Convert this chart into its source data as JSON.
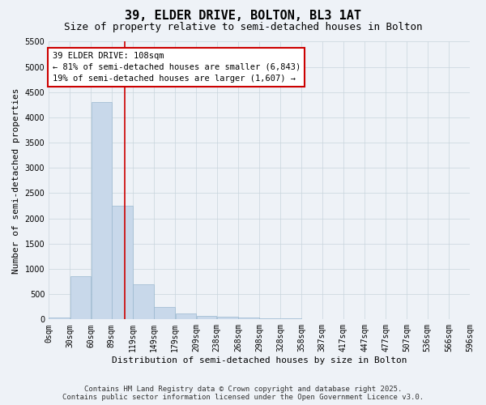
{
  "title": "39, ELDER DRIVE, BOLTON, BL3 1AT",
  "subtitle": "Size of property relative to semi-detached houses in Bolton",
  "xlabel": "Distribution of semi-detached houses by size in Bolton",
  "ylabel": "Number of semi-detached properties",
  "bin_labels": [
    "0sqm",
    "30sqm",
    "60sqm",
    "89sqm",
    "119sqm",
    "149sqm",
    "179sqm",
    "209sqm",
    "238sqm",
    "268sqm",
    "298sqm",
    "328sqm",
    "358sqm",
    "387sqm",
    "417sqm",
    "447sqm",
    "477sqm",
    "507sqm",
    "536sqm",
    "566sqm",
    "596sqm"
  ],
  "bin_edges": [
    0,
    30,
    60,
    89,
    119,
    149,
    179,
    209,
    238,
    268,
    298,
    328,
    358,
    387,
    417,
    447,
    477,
    507,
    536,
    566,
    596
  ],
  "bar_heights": [
    30,
    850,
    4300,
    2250,
    700,
    250,
    120,
    70,
    60,
    40,
    25,
    15,
    10,
    5,
    5,
    3,
    2,
    1,
    1,
    1
  ],
  "bar_color": "#c8d8ea",
  "bar_edgecolor": "#9ab8d0",
  "grid_color": "#c8d4dc",
  "background_color": "#eef2f7",
  "property_size": 108,
  "redline_color": "#cc0000",
  "annotation_line1": "39 ELDER DRIVE: 108sqm",
  "annotation_line2": "← 81% of semi-detached houses are smaller (6,843)",
  "annotation_line3": "19% of semi-detached houses are larger (1,607) →",
  "ylim": [
    0,
    5500
  ],
  "yticks": [
    0,
    500,
    1000,
    1500,
    2000,
    2500,
    3000,
    3500,
    4000,
    4500,
    5000,
    5500
  ],
  "footer_line1": "Contains HM Land Registry data © Crown copyright and database right 2025.",
  "footer_line2": "Contains public sector information licensed under the Open Government Licence v3.0.",
  "title_fontsize": 11,
  "subtitle_fontsize": 9,
  "axis_label_fontsize": 8,
  "tick_fontsize": 7,
  "annotation_fontsize": 7.5,
  "footer_fontsize": 6.5
}
